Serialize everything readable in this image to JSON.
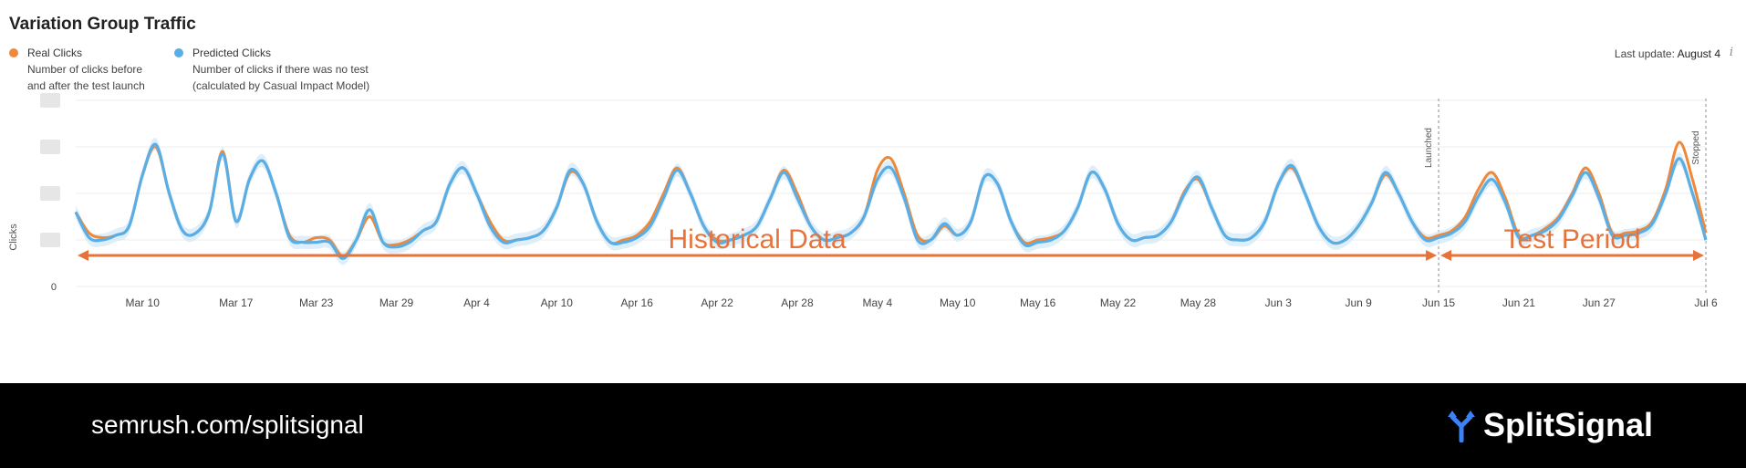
{
  "title": "Variation Group Traffic",
  "legend": {
    "real": {
      "label": "Real Clicks",
      "desc1": "Number of clicks before",
      "desc2": "and after the test launch",
      "color": "#f0883a"
    },
    "predicted": {
      "label": "Predicted Clicks",
      "desc1": "Number of clicks if there was no test",
      "desc2": "(calculated by Casual Impact Model)",
      "color": "#5aaee6"
    }
  },
  "last_update": {
    "label": "Last update:",
    "value": "August 4",
    "icon": "info-icon"
  },
  "footer": {
    "url": "semrush.com/splitsignal",
    "brand": "SplitSignal",
    "icon": "splitsignal-logo-icon"
  },
  "chart_data": {
    "type": "line",
    "title": "Variation Group Traffic",
    "ylabel": "Clicks",
    "xlabel": "",
    "ylim": [
      0,
      4
    ],
    "y_tick_labels": [
      "0"
    ],
    "x_tick_labels": [
      "Mar 10",
      "Mar 17",
      "Mar 23",
      "Mar 29",
      "Apr 4",
      "Apr 10",
      "Apr 16",
      "Apr 22",
      "Apr 28",
      "May 4",
      "May 10",
      "May 16",
      "May 22",
      "May 28",
      "Jun 3",
      "Jun 9",
      "Jun 15",
      "Jun 21",
      "Jun 27",
      "Jul 6"
    ],
    "x_tick_days": [
      5,
      12,
      18,
      24,
      30,
      36,
      42,
      48,
      54,
      60,
      66,
      72,
      78,
      84,
      90,
      96,
      102,
      108,
      114,
      122
    ],
    "x_range_days": [
      0,
      122
    ],
    "annotations": {
      "launched": {
        "label": "Launched",
        "day": 102
      },
      "stopped": {
        "label": "Stopped",
        "day": 122
      },
      "historical": {
        "label": "Historical Data",
        "start_day": 0,
        "end_day": 102
      },
      "test": {
        "label": "Test Period",
        "start_day": 102,
        "end_day": 122
      }
    },
    "series": [
      {
        "name": "Real Clicks",
        "color": "#f0883a",
        "points": [
          [
            0,
            1.6
          ],
          [
            1,
            1.15
          ],
          [
            2,
            1.05
          ],
          [
            3,
            1.1
          ],
          [
            4,
            1.3
          ],
          [
            5,
            2.4
          ],
          [
            6,
            3.0
          ],
          [
            7,
            2.0
          ],
          [
            8,
            1.2
          ],
          [
            9,
            1.15
          ],
          [
            10,
            1.6
          ],
          [
            11,
            2.9
          ],
          [
            12,
            1.4
          ],
          [
            13,
            2.3
          ],
          [
            14,
            2.7
          ],
          [
            15,
            2.0
          ],
          [
            16,
            1.1
          ],
          [
            17,
            0.95
          ],
          [
            18,
            1.05
          ],
          [
            19,
            1.0
          ],
          [
            20,
            0.65
          ],
          [
            21,
            1.0
          ],
          [
            22,
            1.5
          ],
          [
            23,
            0.95
          ],
          [
            24,
            0.9
          ],
          [
            25,
            1.0
          ],
          [
            26,
            1.2
          ],
          [
            27,
            1.4
          ],
          [
            28,
            2.2
          ],
          [
            29,
            2.55
          ],
          [
            30,
            2.0
          ],
          [
            31,
            1.4
          ],
          [
            32,
            1.0
          ],
          [
            33,
            1.0
          ],
          [
            34,
            1.05
          ],
          [
            35,
            1.2
          ],
          [
            36,
            1.7
          ],
          [
            37,
            2.45
          ],
          [
            38,
            2.2
          ],
          [
            39,
            1.4
          ],
          [
            40,
            0.95
          ],
          [
            41,
            1.0
          ],
          [
            42,
            1.1
          ],
          [
            43,
            1.4
          ],
          [
            44,
            2.0
          ],
          [
            45,
            2.55
          ],
          [
            46,
            2.0
          ],
          [
            47,
            1.3
          ],
          [
            48,
            1.0
          ],
          [
            49,
            1.0
          ],
          [
            50,
            1.1
          ],
          [
            51,
            1.3
          ],
          [
            52,
            1.9
          ],
          [
            53,
            2.5
          ],
          [
            54,
            2.0
          ],
          [
            55,
            1.3
          ],
          [
            56,
            1.0
          ],
          [
            57,
            1.05
          ],
          [
            58,
            1.15
          ],
          [
            59,
            1.5
          ],
          [
            60,
            2.5
          ],
          [
            61,
            2.75
          ],
          [
            62,
            2.0
          ],
          [
            63,
            1.1
          ],
          [
            64,
            1.0
          ],
          [
            65,
            1.3
          ],
          [
            66,
            1.1
          ],
          [
            67,
            1.4
          ],
          [
            68,
            2.35
          ],
          [
            69,
            2.2
          ],
          [
            70,
            1.4
          ],
          [
            71,
            0.95
          ],
          [
            72,
            1.0
          ],
          [
            73,
            1.05
          ],
          [
            74,
            1.2
          ],
          [
            75,
            1.7
          ],
          [
            76,
            2.45
          ],
          [
            77,
            2.1
          ],
          [
            78,
            1.35
          ],
          [
            79,
            1.0
          ],
          [
            80,
            1.05
          ],
          [
            81,
            1.1
          ],
          [
            82,
            1.4
          ],
          [
            83,
            2.05
          ],
          [
            84,
            2.3
          ],
          [
            85,
            1.7
          ],
          [
            86,
            1.1
          ],
          [
            87,
            1.0
          ],
          [
            88,
            1.05
          ],
          [
            89,
            1.4
          ],
          [
            90,
            2.2
          ],
          [
            91,
            2.55
          ],
          [
            92,
            2.0
          ],
          [
            93,
            1.3
          ],
          [
            94,
            0.95
          ],
          [
            95,
            1.0
          ],
          [
            96,
            1.3
          ],
          [
            97,
            1.8
          ],
          [
            98,
            2.4
          ],
          [
            99,
            2.0
          ],
          [
            100,
            1.4
          ],
          [
            101,
            1.05
          ],
          [
            102,
            1.1
          ],
          [
            103,
            1.2
          ],
          [
            104,
            1.5
          ],
          [
            105,
            2.1
          ],
          [
            106,
            2.45
          ],
          [
            107,
            1.9
          ],
          [
            108,
            1.1
          ],
          [
            109,
            1.1
          ],
          [
            110,
            1.25
          ],
          [
            111,
            1.5
          ],
          [
            112,
            2.0
          ],
          [
            113,
            2.55
          ],
          [
            114,
            2.0
          ],
          [
            115,
            1.15
          ],
          [
            116,
            1.15
          ],
          [
            117,
            1.2
          ],
          [
            118,
            1.4
          ],
          [
            119,
            2.1
          ],
          [
            120,
            3.1
          ],
          [
            121,
            2.3
          ],
          [
            122,
            1.15
          ]
        ]
      },
      {
        "name": "Predicted Clicks",
        "color": "#5aaee6",
        "points": [
          [
            0,
            1.6
          ],
          [
            1,
            1.05
          ],
          [
            2,
            1.0
          ],
          [
            3,
            1.1
          ],
          [
            4,
            1.3
          ],
          [
            5,
            2.4
          ],
          [
            6,
            3.05
          ],
          [
            7,
            2.0
          ],
          [
            8,
            1.2
          ],
          [
            9,
            1.15
          ],
          [
            10,
            1.6
          ],
          [
            11,
            2.85
          ],
          [
            12,
            1.4
          ],
          [
            13,
            2.3
          ],
          [
            14,
            2.7
          ],
          [
            15,
            2.0
          ],
          [
            16,
            1.05
          ],
          [
            17,
            0.95
          ],
          [
            18,
            0.95
          ],
          [
            19,
            0.95
          ],
          [
            20,
            0.6
          ],
          [
            21,
            1.0
          ],
          [
            22,
            1.65
          ],
          [
            23,
            0.95
          ],
          [
            24,
            0.85
          ],
          [
            25,
            0.95
          ],
          [
            26,
            1.2
          ],
          [
            27,
            1.4
          ],
          [
            28,
            2.2
          ],
          [
            29,
            2.55
          ],
          [
            30,
            2.0
          ],
          [
            31,
            1.3
          ],
          [
            32,
            0.95
          ],
          [
            33,
            1.0
          ],
          [
            34,
            1.05
          ],
          [
            35,
            1.2
          ],
          [
            36,
            1.7
          ],
          [
            37,
            2.5
          ],
          [
            38,
            2.2
          ],
          [
            39,
            1.4
          ],
          [
            40,
            0.95
          ],
          [
            41,
            0.95
          ],
          [
            42,
            1.05
          ],
          [
            43,
            1.3
          ],
          [
            44,
            1.9
          ],
          [
            45,
            2.5
          ],
          [
            46,
            2.0
          ],
          [
            47,
            1.3
          ],
          [
            48,
            0.95
          ],
          [
            49,
            1.0
          ],
          [
            50,
            1.1
          ],
          [
            51,
            1.3
          ],
          [
            52,
            1.9
          ],
          [
            53,
            2.45
          ],
          [
            54,
            1.9
          ],
          [
            55,
            1.3
          ],
          [
            56,
            1.0
          ],
          [
            57,
            1.05
          ],
          [
            58,
            1.15
          ],
          [
            59,
            1.5
          ],
          [
            60,
            2.3
          ],
          [
            61,
            2.55
          ],
          [
            62,
            1.9
          ],
          [
            63,
            1.0
          ],
          [
            64,
            1.0
          ],
          [
            65,
            1.35
          ],
          [
            66,
            1.1
          ],
          [
            67,
            1.4
          ],
          [
            68,
            2.35
          ],
          [
            69,
            2.2
          ],
          [
            70,
            1.4
          ],
          [
            71,
            0.9
          ],
          [
            72,
            0.95
          ],
          [
            73,
            1.0
          ],
          [
            74,
            1.2
          ],
          [
            75,
            1.7
          ],
          [
            76,
            2.45
          ],
          [
            77,
            2.1
          ],
          [
            78,
            1.35
          ],
          [
            79,
            1.0
          ],
          [
            80,
            1.05
          ],
          [
            81,
            1.1
          ],
          [
            82,
            1.4
          ],
          [
            83,
            2.0
          ],
          [
            84,
            2.35
          ],
          [
            85,
            1.7
          ],
          [
            86,
            1.1
          ],
          [
            87,
            1.0
          ],
          [
            88,
            1.05
          ],
          [
            89,
            1.4
          ],
          [
            90,
            2.2
          ],
          [
            91,
            2.6
          ],
          [
            92,
            2.0
          ],
          [
            93,
            1.3
          ],
          [
            94,
            0.95
          ],
          [
            95,
            1.0
          ],
          [
            96,
            1.3
          ],
          [
            97,
            1.8
          ],
          [
            98,
            2.45
          ],
          [
            99,
            2.0
          ],
          [
            100,
            1.4
          ],
          [
            101,
            1.0
          ],
          [
            102,
            1.05
          ],
          [
            103,
            1.15
          ],
          [
            104,
            1.4
          ],
          [
            105,
            1.95
          ],
          [
            106,
            2.3
          ],
          [
            107,
            1.8
          ],
          [
            108,
            1.05
          ],
          [
            109,
            1.1
          ],
          [
            110,
            1.2
          ],
          [
            111,
            1.45
          ],
          [
            112,
            1.95
          ],
          [
            113,
            2.45
          ],
          [
            114,
            1.9
          ],
          [
            115,
            1.1
          ],
          [
            116,
            1.1
          ],
          [
            117,
            1.15
          ],
          [
            118,
            1.35
          ],
          [
            119,
            2.0
          ],
          [
            120,
            2.75
          ],
          [
            121,
            2.0
          ],
          [
            122,
            1.0
          ]
        ]
      }
    ]
  }
}
